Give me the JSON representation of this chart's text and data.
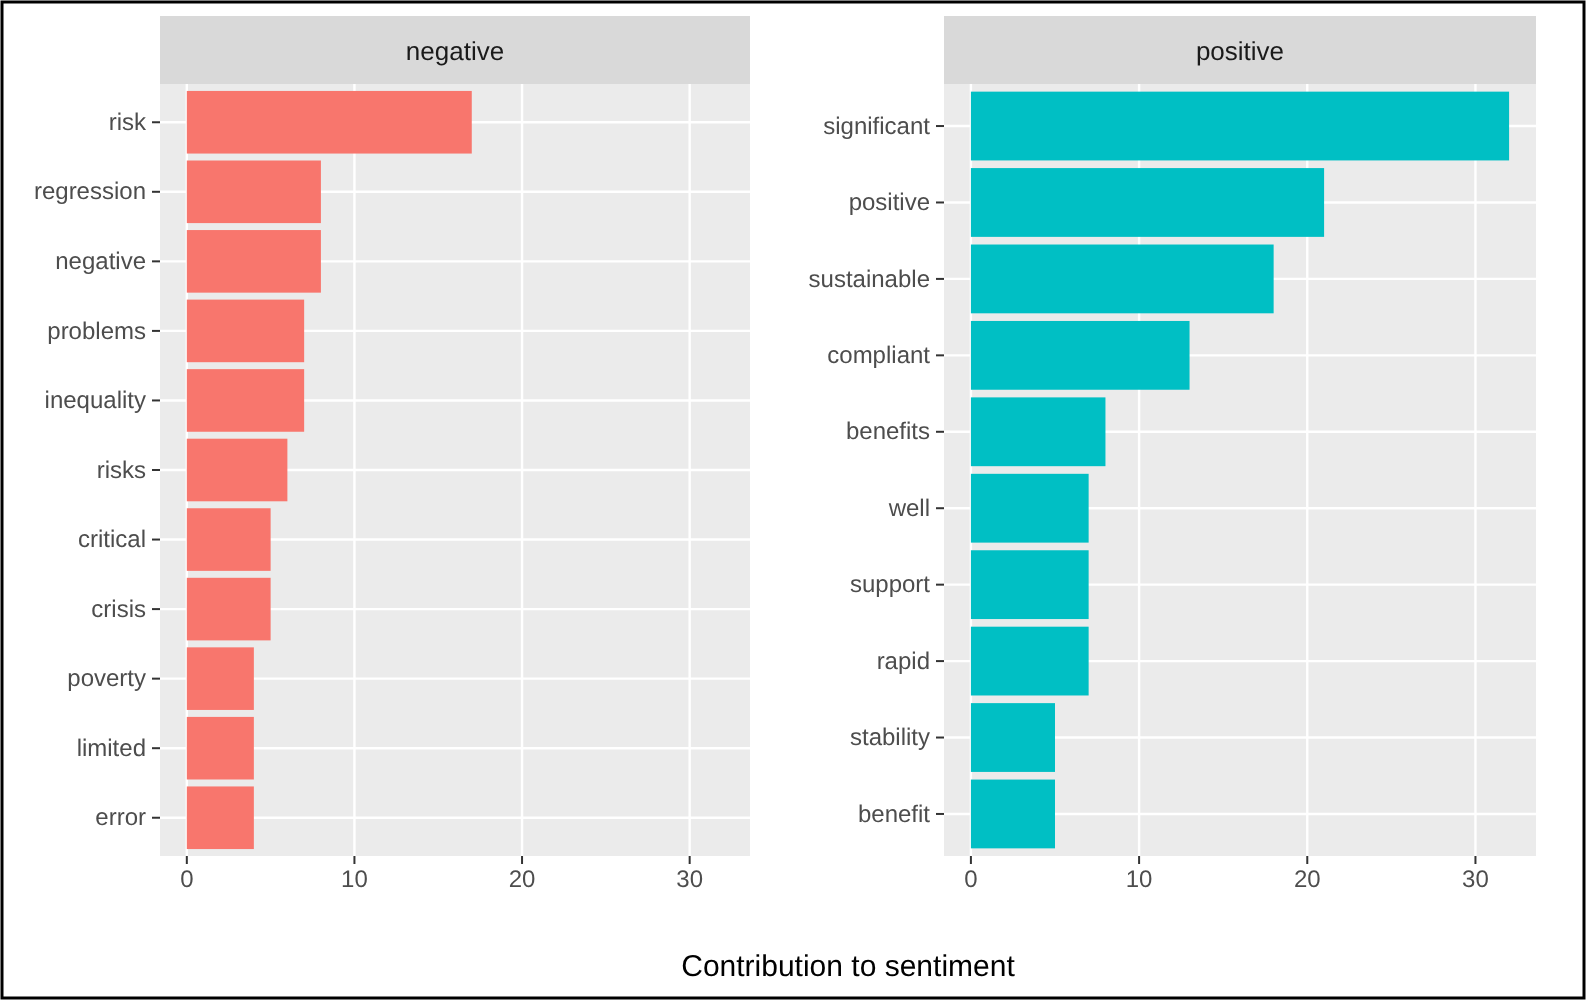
{
  "chart_data": [
    {
      "type": "bar",
      "orientation": "horizontal",
      "title": "negative",
      "xlabel": "Contribution to sentiment",
      "categories": [
        "risk",
        "regression",
        "negative",
        "problems",
        "inequality",
        "risks",
        "critical",
        "crisis",
        "poverty",
        "limited",
        "error"
      ],
      "values": [
        17,
        8,
        8,
        7,
        7,
        6,
        5,
        5,
        4,
        4,
        4
      ],
      "color": "#f8766d",
      "xlim": [
        -1.6,
        33.6
      ],
      "xticks": [
        0,
        10,
        20,
        30
      ],
      "grid": true
    },
    {
      "type": "bar",
      "orientation": "horizontal",
      "title": "positive",
      "categories": [
        "significant",
        "positive",
        "sustainable",
        "compliant",
        "benefits",
        "well",
        "support",
        "rapid",
        "stability",
        "benefit"
      ],
      "values": [
        32,
        21,
        18,
        13,
        8,
        7,
        7,
        7,
        5,
        5
      ],
      "color": "#00bfc4",
      "xlim": [
        -1.6,
        33.6
      ],
      "xticks": [
        0,
        10,
        20,
        30
      ],
      "grid": true
    }
  ]
}
